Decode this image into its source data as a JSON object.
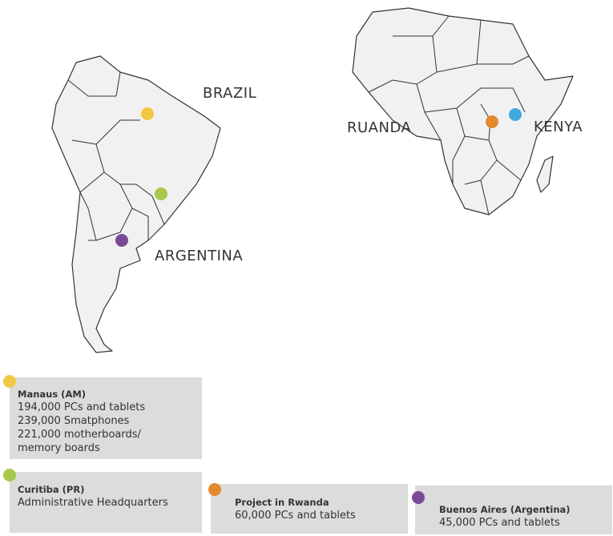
{
  "countries": [
    "BRAZIL",
    "RUANDA",
    "KENYA",
    "ARGENTINA"
  ],
  "locations": [
    {
      "title": "Manaus (AM)",
      "lines": [
        "194,000 PCs and tablets",
        "239,000 Smatphones",
        "221,000 motherboards/",
        "memory boards"
      ]
    },
    {
      "title": "Curitiba (PR)",
      "lines": [
        "Administrative Headquarters"
      ]
    },
    {
      "title": "Project in Rwanda",
      "lines": [
        "60,000 PCs and tablets"
      ]
    },
    {
      "title": "Buenos Aires (Argentina)",
      "lines": [
        "45,000 PCs and tablets"
      ]
    }
  ]
}
